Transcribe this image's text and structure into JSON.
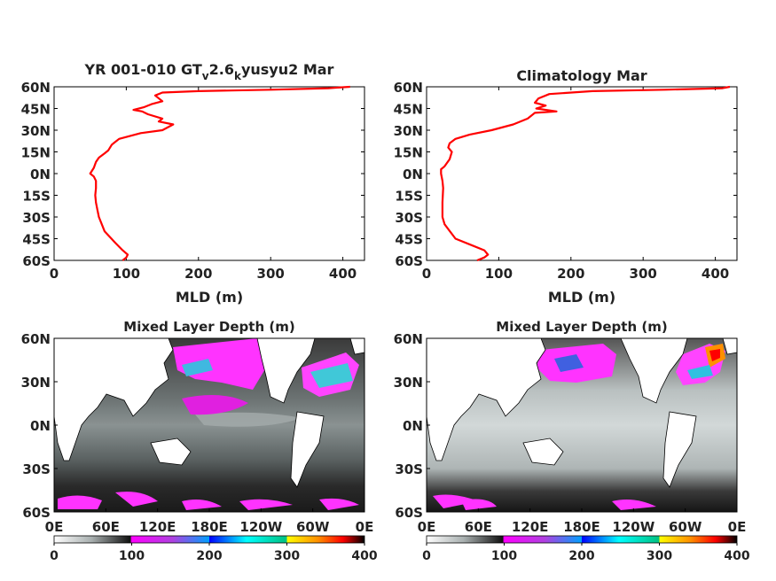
{
  "panels": {
    "top_left": {
      "title_main": "YR 001-010 GT",
      "title_sub1": "v",
      "title_mid": "2.6",
      "title_sub2": "k",
      "title_end": "yusyu2 Mar"
    },
    "top_right": {
      "title": "Climatology Mar"
    },
    "bottom_left": {
      "title": "Mixed Layer Depth (m)"
    },
    "bottom_right": {
      "title": "Mixed Layer Depth (m)"
    }
  },
  "colors": {
    "profile_line": "#ff0000",
    "colormap": [
      "#ffffff",
      "#9aa3a3",
      "#000000",
      "#ff00ff",
      "#7f3fbf",
      "#0000ff",
      "#00ffff",
      "#00c080",
      "#ffff00",
      "#ff8000",
      "#ff0000",
      "#000000"
    ]
  },
  "chart_data": [
    {
      "type": "line",
      "name": "top_left_profile",
      "xlabel": "MLD (m)",
      "ylabel": "",
      "xlim": [
        0,
        430
      ],
      "ylim": [
        -60,
        60
      ],
      "xticks": [
        0,
        100,
        200,
        300,
        400
      ],
      "yticks": [
        60,
        45,
        30,
        15,
        0,
        -15,
        -30,
        -45,
        -60
      ],
      "ytick_labels": [
        "60N",
        "45N",
        "30N",
        "15N",
        "0N",
        "15S",
        "30S",
        "45S",
        "60S"
      ],
      "x": [
        410,
        380,
        300,
        200,
        150,
        140,
        150,
        135,
        125,
        110,
        122,
        130,
        150,
        145,
        165,
        150,
        120,
        90,
        80,
        75,
        70,
        62,
        58,
        55,
        50,
        55,
        58,
        58,
        57,
        58,
        60,
        62,
        70,
        85,
        95,
        102,
        100,
        95
      ],
      "y": [
        60,
        59,
        58,
        57,
        56,
        54,
        50,
        48,
        46,
        44,
        43,
        41,
        38,
        36,
        34,
        30,
        28,
        24,
        20,
        16,
        14,
        11,
        8,
        4,
        0,
        -2,
        -5,
        -10,
        -15,
        -20,
        -25,
        -30,
        -40,
        -48,
        -53,
        -56,
        -58,
        -60
      ]
    },
    {
      "type": "line",
      "name": "top_right_profile",
      "xlabel": "MLD (m)",
      "ylabel": "",
      "xlim": [
        0,
        430
      ],
      "ylim": [
        -60,
        60
      ],
      "xticks": [
        0,
        100,
        200,
        300,
        400
      ],
      "yticks": [
        60,
        45,
        30,
        15,
        0,
        -15,
        -30,
        -45,
        -60
      ],
      "ytick_labels": [
        "60N",
        "45N",
        "30N",
        "15N",
        "0N",
        "15S",
        "30S",
        "45S",
        "60S"
      ],
      "x": [
        420,
        410,
        330,
        230,
        170,
        155,
        150,
        165,
        152,
        180,
        150,
        140,
        120,
        90,
        60,
        40,
        32,
        30,
        35,
        32,
        25,
        20,
        20,
        22,
        23,
        22,
        22,
        25,
        40,
        65,
        80,
        85,
        80,
        70
      ],
      "y": [
        60,
        59,
        58,
        57,
        55,
        52,
        49,
        47,
        45,
        43,
        42,
        38,
        34,
        30,
        27,
        24,
        21,
        18,
        15,
        10,
        5,
        3,
        0,
        -5,
        -10,
        -20,
        -30,
        -35,
        -45,
        -50,
        -53,
        -56,
        -58,
        -60
      ]
    },
    {
      "type": "heatmap",
      "name": "bottom_left_map",
      "title": "Mixed Layer Depth (m)",
      "xticks": [
        "0E",
        "60E",
        "120E",
        "180E",
        "120W",
        "60W",
        "0E"
      ],
      "yticks": [
        "60N",
        "30N",
        "0N",
        "30S",
        "60S"
      ],
      "colorbar_ticks": [
        0,
        100,
        200,
        300,
        400
      ],
      "zlim": [
        0,
        400
      ]
    },
    {
      "type": "heatmap",
      "name": "bottom_right_map",
      "title": "Mixed Layer Depth (m)",
      "xticks": [
        "0E",
        "60E",
        "120E",
        "180E",
        "120W",
        "60W",
        "0E"
      ],
      "yticks": [
        "60N",
        "30N",
        "0N",
        "30S",
        "60S"
      ],
      "colorbar_ticks": [
        0,
        100,
        200,
        300,
        400
      ],
      "zlim": [
        0,
        400
      ]
    }
  ]
}
